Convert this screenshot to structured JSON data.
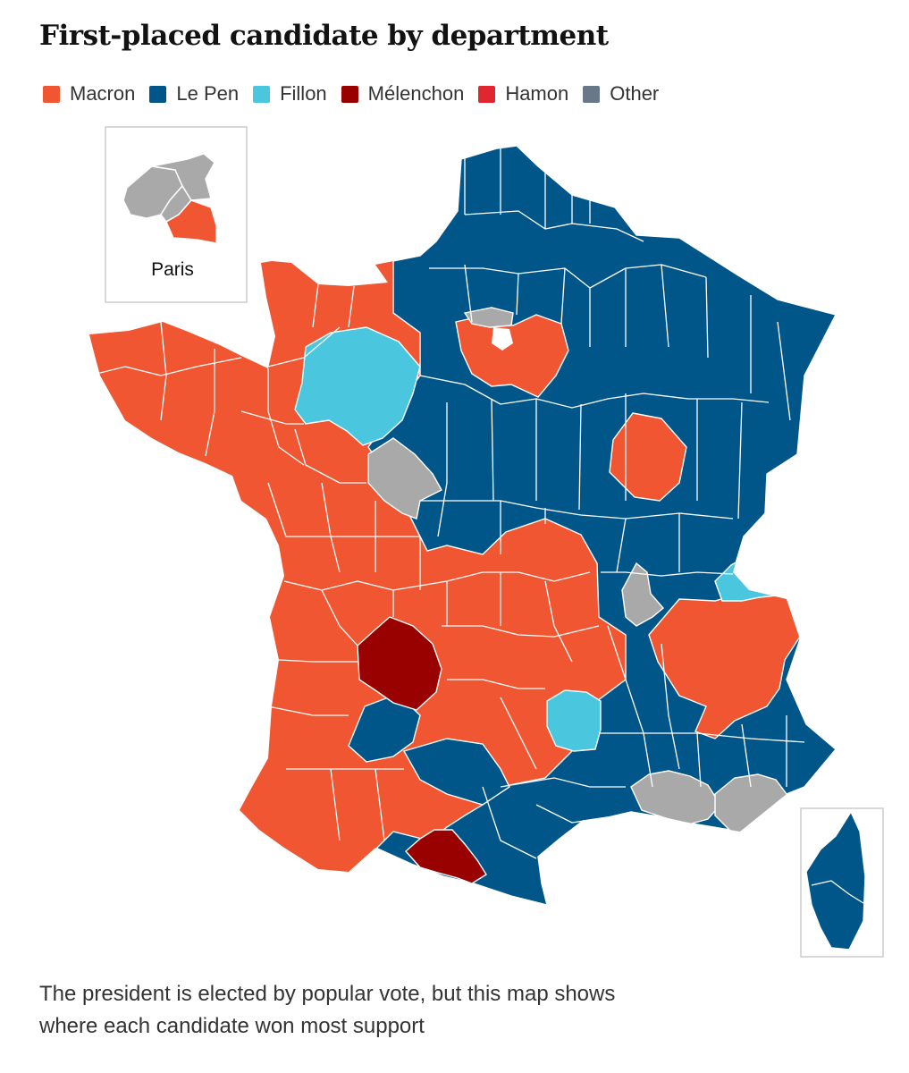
{
  "title": "First-placed candidate by department",
  "legend": [
    {
      "label": "Macron",
      "color": "#ef5631",
      "icon": "square-swatch"
    },
    {
      "label": "Le Pen",
      "color": "#005689",
      "icon": "square-swatch"
    },
    {
      "label": "Fillon",
      "color": "#4bc6df",
      "icon": "square-swatch"
    },
    {
      "label": "Mélenchon",
      "color": "#990000",
      "icon": "square-swatch"
    },
    {
      "label": "Hamon",
      "color": "#e0262e",
      "icon": "square-swatch"
    },
    {
      "label": "Other",
      "color": "#687888",
      "icon": "square-swatch"
    }
  ],
  "inset_paris": {
    "label": "Paris"
  },
  "colors": {
    "macron": "#ef5631",
    "lepen": "#005689",
    "fillon": "#4bc6df",
    "melenchon": "#990000",
    "other_grey": "#a9a9a9",
    "border": "#ffffff",
    "frame": "#cccccc"
  },
  "caption": "The president is elected by popular vote, but this map shows where each candidate won most support"
}
